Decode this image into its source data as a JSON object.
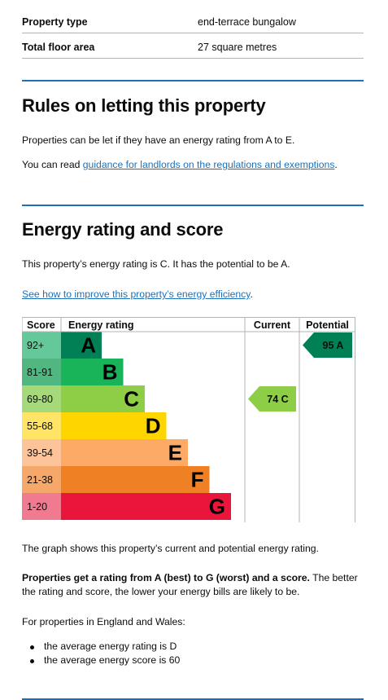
{
  "summary": {
    "rows": [
      {
        "key": "Property type",
        "value": "end-terrace bungalow"
      },
      {
        "key": "Total floor area",
        "value": "27 square metres"
      }
    ]
  },
  "letting": {
    "heading": "Rules on letting this property",
    "para1": "Properties can be let if they have an energy rating from A to E.",
    "para2_prefix": "You can read ",
    "para2_link": "guidance for landlords on the regulations and exemptions",
    "para2_suffix": "."
  },
  "energy": {
    "heading": "Energy rating and score",
    "summary_text": "This property’s energy rating is C. It has the potential to be A.",
    "improve_link": "See how to improve this property’s energy efficiency",
    "improve_suffix": ".",
    "graph_caption": "The graph shows this property’s current and potential energy rating.",
    "rating_bold": "Properties get a rating from A (best) to G (worst) and a score.",
    "rating_rest": " The better the rating and score, the lower your energy bills are likely to be.",
    "average_intro": "For properties in England and Wales:",
    "average_items": [
      "the average energy rating is D",
      "the average energy score is 60"
    ]
  },
  "chart_data": {
    "type": "table",
    "headers": {
      "score": "Score",
      "rating": "Energy rating",
      "current": "Current",
      "potential": "Potential"
    },
    "bands": [
      {
        "range": "92+",
        "letter": "A",
        "color": "#008054",
        "score_bg": "#64c89a"
      },
      {
        "range": "81-91",
        "letter": "B",
        "color": "#19b459",
        "score_bg": "#4fb77f"
      },
      {
        "range": "69-80",
        "letter": "C",
        "color": "#8dce46",
        "score_bg": "#a6d97a"
      },
      {
        "range": "55-68",
        "letter": "D",
        "color": "#ffd500",
        "score_bg": "#ffe466"
      },
      {
        "range": "39-54",
        "letter": "E",
        "color": "#fcaa65",
        "score_bg": "#fdc499"
      },
      {
        "range": "21-38",
        "letter": "F",
        "color": "#ef8023",
        "score_bg": "#f5a86a"
      },
      {
        "range": "1-20",
        "letter": "G",
        "color": "#e9153b",
        "score_bg": "#f07a8f"
      }
    ],
    "current": {
      "score": 74,
      "letter": "C",
      "label": "74 C",
      "color": "#8dce46"
    },
    "potential": {
      "score": 95,
      "letter": "A",
      "label": "95 A",
      "color": "#008054"
    }
  }
}
